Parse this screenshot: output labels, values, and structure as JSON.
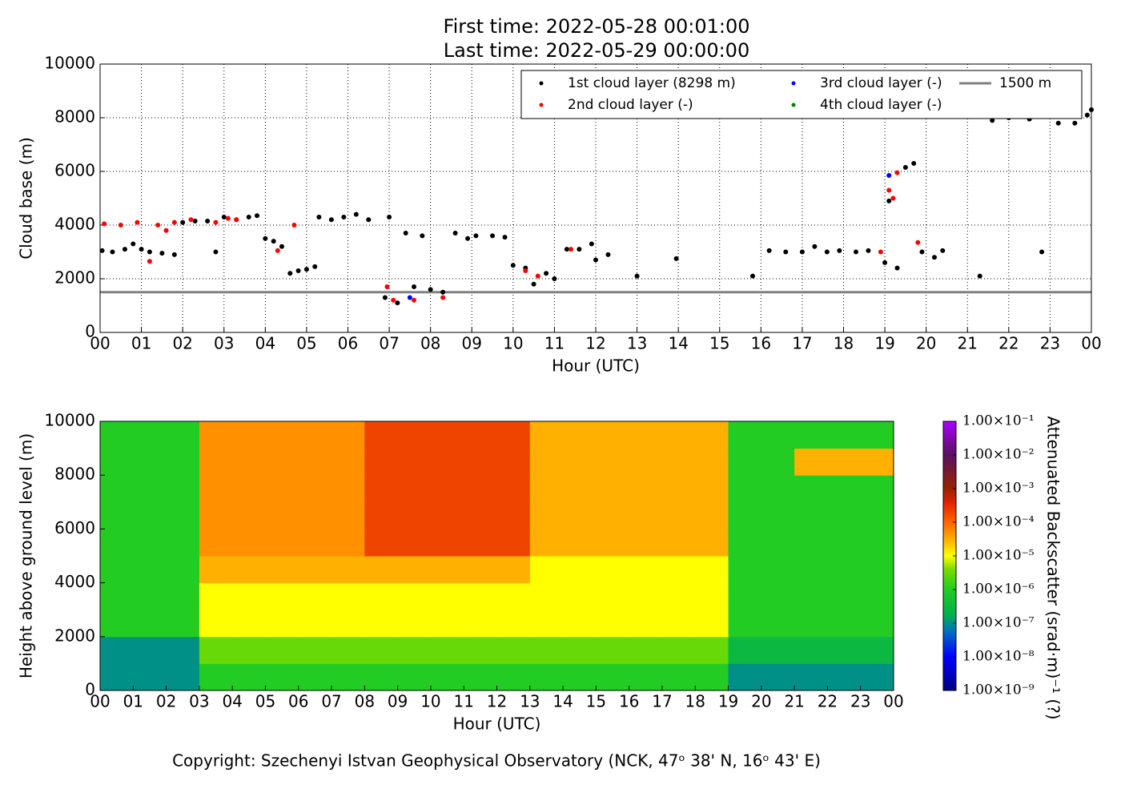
{
  "chart_data": [
    {
      "type": "scatter",
      "title": "First time: 2022-05-28 00:01:00",
      "subtitle": "Last time: 2022-05-29 00:00:00",
      "xlabel": "Hour (UTC)",
      "ylabel": "Cloud base (m)",
      "grid": true,
      "legend": "upper right",
      "xlim": [
        0,
        24
      ],
      "ylim": [
        0,
        10000
      ],
      "xticks": [
        {
          "value": 0,
          "label": "00"
        },
        {
          "value": 1,
          "label": "01"
        },
        {
          "value": 2,
          "label": "02"
        },
        {
          "value": 3,
          "label": "03"
        },
        {
          "value": 4,
          "label": "04"
        },
        {
          "value": 5,
          "label": "05"
        },
        {
          "value": 6,
          "label": "06"
        },
        {
          "value": 7,
          "label": "07"
        },
        {
          "value": 8,
          "label": "08"
        },
        {
          "value": 9,
          "label": "09"
        },
        {
          "value": 10,
          "label": "10"
        },
        {
          "value": 11,
          "label": "11"
        },
        {
          "value": 12,
          "label": "12"
        },
        {
          "value": 13,
          "label": "13"
        },
        {
          "value": 14,
          "label": "14"
        },
        {
          "value": 15,
          "label": "15"
        },
        {
          "value": 16,
          "label": "16"
        },
        {
          "value": 17,
          "label": "17"
        },
        {
          "value": 18,
          "label": "18"
        },
        {
          "value": 19,
          "label": "19"
        },
        {
          "value": 20,
          "label": "20"
        },
        {
          "value": 21,
          "label": "21"
        },
        {
          "value": 22,
          "label": "22"
        },
        {
          "value": 23,
          "label": "23"
        },
        {
          "value": 24,
          "label": "00"
        }
      ],
      "yticks": [
        0,
        2000,
        4000,
        6000,
        8000,
        10000
      ],
      "series": [
        {
          "name": "1st cloud layer (8298 m)",
          "color": "#000000",
          "x": [
            0.05,
            0.3,
            0.6,
            0.8,
            1.0,
            1.2,
            1.5,
            1.8,
            2.0,
            2.3,
            2.6,
            2.8,
            3.0,
            3.3,
            3.6,
            3.8,
            4.0,
            4.2,
            4.4,
            4.6,
            4.8,
            5.0,
            5.2,
            5.3,
            5.6,
            5.9,
            6.2,
            6.5,
            6.9,
            7.0,
            7.2,
            7.4,
            7.6,
            7.8,
            8.0,
            8.3,
            8.6,
            8.9,
            9.1,
            9.5,
            9.8,
            10.0,
            10.3,
            10.5,
            10.8,
            11.0,
            11.3,
            11.6,
            11.9,
            12.0,
            12.3,
            13.0,
            13.95,
            15.8,
            16.2,
            16.6,
            17.0,
            17.3,
            17.6,
            17.9,
            18.3,
            18.6,
            19.0,
            19.1,
            19.3,
            19.5,
            19.7,
            19.9,
            20.2,
            20.4,
            21.3,
            21.6,
            22.0,
            22.5,
            22.8,
            23.2,
            23.6,
            23.9,
            24.0
          ],
          "values": [
            3050,
            3000,
            3100,
            3300,
            3100,
            3000,
            2950,
            2900,
            4100,
            4150,
            4150,
            3000,
            4300,
            4200,
            4300,
            4350,
            3500,
            3400,
            3200,
            2200,
            2300,
            2350,
            2450,
            4300,
            4200,
            4300,
            4400,
            4200,
            1300,
            4300,
            1100,
            3700,
            1700,
            3600,
            1600,
            1500,
            3700,
            3500,
            3600,
            3600,
            3550,
            2500,
            2400,
            1800,
            2200,
            2000,
            3100,
            3100,
            3300,
            2700,
            2900,
            2100,
            2750,
            2100,
            3050,
            3000,
            3000,
            3200,
            3000,
            3050,
            3000,
            3050,
            2600,
            4900,
            2400,
            6150,
            6300,
            3000,
            2800,
            3050,
            2100,
            7900,
            8000,
            7950,
            3000,
            7800,
            7800,
            8100,
            8300
          ]
        },
        {
          "name": "2nd cloud layer (-)",
          "color": "#ff0000",
          "x": [
            0.1,
            0.5,
            0.9,
            1.2,
            1.4,
            1.6,
            1.8,
            2.2,
            2.8,
            3.1,
            3.3,
            4.3,
            4.7,
            6.95,
            7.1,
            7.6,
            8.3,
            10.3,
            10.6,
            11.4,
            18.9,
            19.1,
            19.2,
            19.3,
            19.8
          ],
          "values": [
            4050,
            4000,
            4100,
            2650,
            4000,
            3800,
            4100,
            4200,
            4100,
            4250,
            4200,
            3050,
            4000,
            1700,
            1200,
            1200,
            1300,
            2300,
            2100,
            3100,
            3000,
            5300,
            5000,
            5950,
            3350
          ]
        },
        {
          "name": "3rd cloud layer (-)",
          "color": "#0000ff",
          "x": [
            7.5,
            19.1
          ],
          "values": [
            1300,
            5850
          ]
        },
        {
          "name": "4th cloud layer (-)",
          "color": "#008000",
          "x": [],
          "values": []
        }
      ],
      "hlines": [
        {
          "name": "1500 m",
          "value": 1500,
          "color": "#808080"
        }
      ]
    },
    {
      "type": "heatmap",
      "xlabel": "Hour (UTC)",
      "ylabel": "Height above ground level (m)",
      "xlim": [
        0,
        24
      ],
      "ylim": [
        0,
        10000
      ],
      "xticks": [
        {
          "value": 0,
          "label": "00"
        },
        {
          "value": 1,
          "label": "01"
        },
        {
          "value": 2,
          "label": "02"
        },
        {
          "value": 3,
          "label": "03"
        },
        {
          "value": 4,
          "label": "04"
        },
        {
          "value": 5,
          "label": "05"
        },
        {
          "value": 6,
          "label": "06"
        },
        {
          "value": 7,
          "label": "07"
        },
        {
          "value": 8,
          "label": "08"
        },
        {
          "value": 9,
          "label": "09"
        },
        {
          "value": 10,
          "label": "10"
        },
        {
          "value": 11,
          "label": "11"
        },
        {
          "value": 12,
          "label": "12"
        },
        {
          "value": 13,
          "label": "13"
        },
        {
          "value": 14,
          "label": "14"
        },
        {
          "value": 15,
          "label": "15"
        },
        {
          "value": 16,
          "label": "16"
        },
        {
          "value": 17,
          "label": "17"
        },
        {
          "value": 18,
          "label": "18"
        },
        {
          "value": 19,
          "label": "19"
        },
        {
          "value": 20,
          "label": "20"
        },
        {
          "value": 21,
          "label": "21"
        },
        {
          "value": 22,
          "label": "22"
        },
        {
          "value": 23,
          "label": "23"
        },
        {
          "value": 24,
          "label": "00"
        }
      ],
      "yticks": [
        0,
        2000,
        4000,
        6000,
        8000,
        10000
      ],
      "x_bins": [
        0,
        1,
        2,
        3,
        4,
        5,
        6,
        7,
        8,
        9,
        10,
        11,
        12,
        13,
        14,
        15,
        16,
        17,
        18,
        19,
        20,
        21,
        22,
        23,
        24
      ],
      "y_bins": [
        0,
        1000,
        2000,
        3000,
        4000,
        5000,
        6000,
        7000,
        8000,
        9000,
        10000
      ],
      "z": [
        [
          1e-07,
          1e-07,
          1e-07,
          1e-06,
          1e-06,
          1e-06,
          1e-06,
          1e-06,
          1e-06,
          1e-06,
          1e-06,
          1e-06,
          1e-06,
          1e-06,
          1e-06,
          1e-06,
          1e-06,
          1e-06,
          1e-06,
          1e-07,
          1e-07,
          1e-07,
          1e-07,
          1e-07
        ],
        [
          1e-07,
          1e-07,
          1e-07,
          3e-06,
          3e-06,
          3e-06,
          3e-06,
          3e-06,
          3e-06,
          3e-06,
          3e-06,
          3e-06,
          3e-06,
          3e-06,
          3e-06,
          3e-06,
          3e-06,
          3e-06,
          3e-06,
          3e-07,
          3e-07,
          3e-07,
          3e-07,
          3e-07
        ],
        [
          1e-06,
          1e-06,
          1e-06,
          1e-05,
          1e-05,
          1e-05,
          1e-05,
          1e-05,
          1e-05,
          1e-05,
          1e-05,
          1e-05,
          1e-05,
          1e-05,
          1e-05,
          1e-05,
          1e-05,
          1e-05,
          1e-05,
          1e-06,
          1e-06,
          1e-06,
          1e-06,
          1e-06
        ],
        [
          1e-06,
          1e-06,
          1e-06,
          1e-05,
          1e-05,
          1e-05,
          1e-05,
          1e-05,
          1e-05,
          1e-05,
          1e-05,
          1e-05,
          1e-05,
          1e-05,
          1e-05,
          1e-05,
          1e-05,
          1e-05,
          1e-05,
          1e-06,
          1e-06,
          1e-06,
          1e-06,
          1e-06
        ],
        [
          1e-06,
          1e-06,
          1e-06,
          3e-05,
          3e-05,
          3e-05,
          3e-05,
          3e-05,
          3e-05,
          3e-05,
          3e-05,
          3e-05,
          3e-05,
          1e-05,
          1e-05,
          1e-05,
          1e-05,
          1e-05,
          1e-05,
          1e-06,
          1e-06,
          1e-06,
          1e-06,
          1e-06
        ],
        [
          1e-06,
          1e-06,
          1e-06,
          5e-05,
          5e-05,
          5e-05,
          5e-05,
          5e-05,
          0.0002,
          0.0002,
          0.0002,
          0.0002,
          0.0002,
          3e-05,
          3e-05,
          3e-05,
          3e-05,
          3e-05,
          3e-05,
          1e-06,
          1e-06,
          1e-06,
          1e-06,
          1e-06
        ],
        [
          1e-06,
          1e-06,
          1e-06,
          5e-05,
          5e-05,
          5e-05,
          5e-05,
          5e-05,
          0.0002,
          0.0002,
          0.0002,
          0.0002,
          0.0002,
          3e-05,
          3e-05,
          3e-05,
          3e-05,
          3e-05,
          3e-05,
          1e-06,
          1e-06,
          1e-06,
          1e-06,
          1e-06
        ],
        [
          1e-06,
          1e-06,
          1e-06,
          5e-05,
          5e-05,
          5e-05,
          5e-05,
          5e-05,
          0.0002,
          0.0002,
          0.0002,
          0.0002,
          0.0002,
          3e-05,
          3e-05,
          3e-05,
          3e-05,
          3e-05,
          3e-05,
          1e-06,
          1e-06,
          1e-06,
          1e-06,
          1e-06
        ],
        [
          1e-06,
          1e-06,
          1e-06,
          5e-05,
          5e-05,
          5e-05,
          5e-05,
          5e-05,
          0.0002,
          0.0002,
          0.0002,
          0.0002,
          0.0002,
          3e-05,
          3e-05,
          3e-05,
          3e-05,
          3e-05,
          3e-05,
          1e-06,
          1e-06,
          3e-05,
          3e-05,
          3e-05
        ],
        [
          1e-06,
          1e-06,
          1e-06,
          5e-05,
          5e-05,
          5e-05,
          5e-05,
          5e-05,
          0.0002,
          0.0002,
          0.0002,
          0.0002,
          0.0002,
          3e-05,
          3e-05,
          3e-05,
          3e-05,
          3e-05,
          3e-05,
          1e-06,
          1e-06,
          1e-06,
          1e-06,
          1e-06
        ]
      ],
      "colorbar": {
        "label": "Attenuated Backscatter (srad·m)⁻¹ (?)",
        "log": true,
        "lim": [
          1e-09,
          0.1
        ],
        "ticks": [
          {
            "value": 1e-09,
            "label": "1.00×10⁻⁹"
          },
          {
            "value": 1e-08,
            "label": "1.00×10⁻⁸"
          },
          {
            "value": 1e-07,
            "label": "1.00×10⁻⁷"
          },
          {
            "value": 1e-06,
            "label": "1.00×10⁻⁶"
          },
          {
            "value": 1e-05,
            "label": "1.00×10⁻⁵"
          },
          {
            "value": 0.0001,
            "label": "1.00×10⁻⁴"
          },
          {
            "value": 0.001,
            "label": "1.00×10⁻³"
          },
          {
            "value": 0.01,
            "label": "1.00×10⁻²"
          },
          {
            "value": 0.1,
            "label": "1.00×10⁻¹"
          }
        ]
      }
    }
  ],
  "footer": "Copyright: Szechenyi Istvan Geophysical Observatory (NCK, 47ᵒ 38' N, 16ᵒ 43' E)"
}
